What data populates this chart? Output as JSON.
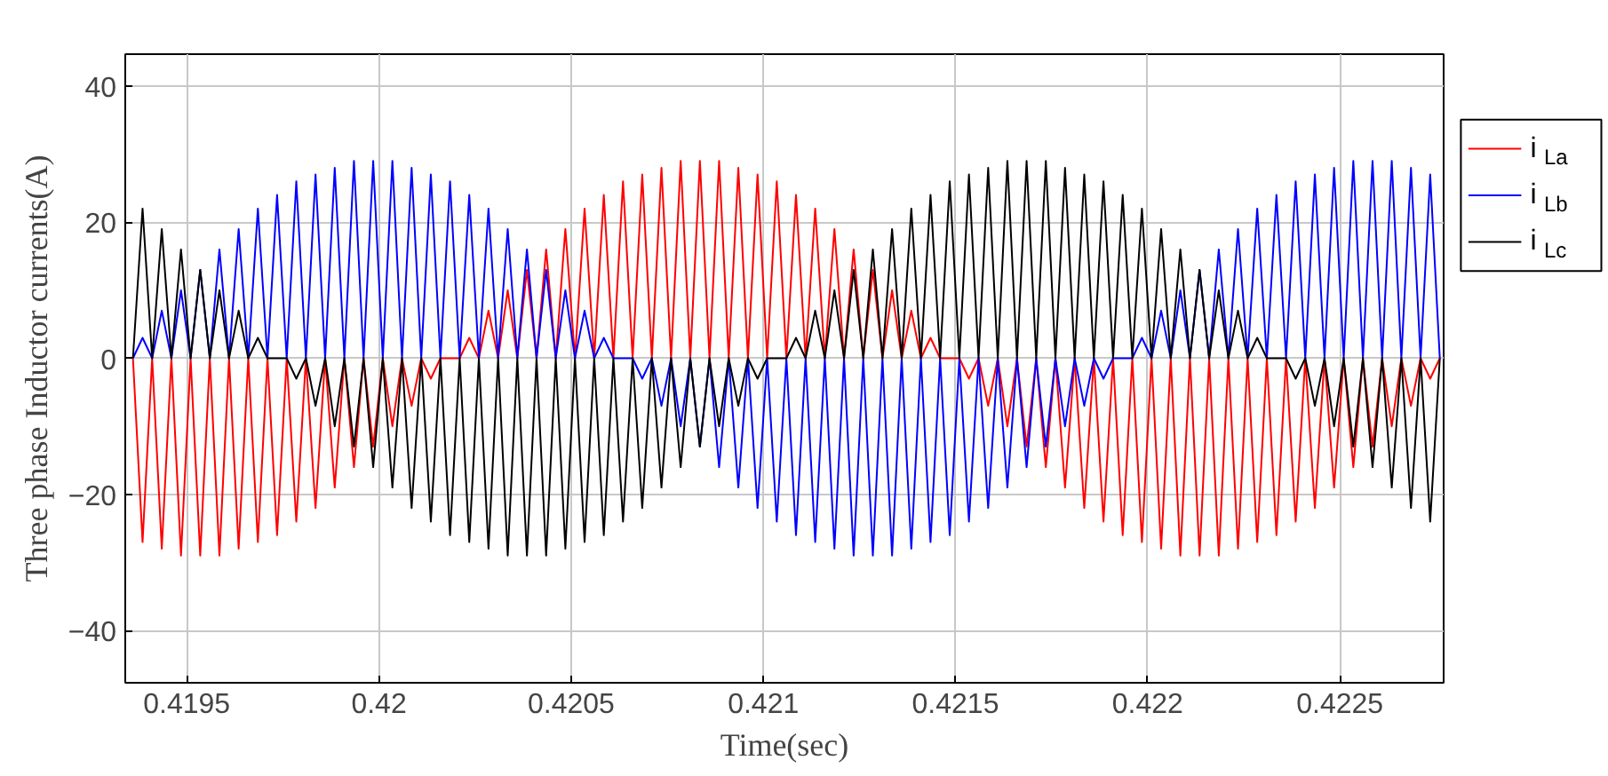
{
  "chart_data": {
    "type": "line",
    "xlabel": "Time(sec)",
    "ylabel": "Three phase Inductor currents(A)",
    "xlim": [
      0.41934,
      0.42277
    ],
    "ylim": [
      -47.7,
      44.7
    ],
    "xticks": [
      0.4195,
      0.42,
      0.4205,
      0.421,
      0.4215,
      0.422,
      0.4225
    ],
    "yticks": [
      -40,
      -20,
      0,
      20,
      40
    ],
    "grid": true,
    "legend": "right",
    "line_style": "solid",
    "x": [
      0.41936,
      0.419385,
      0.41941,
      0.419435,
      0.41946,
      0.419485,
      0.41951,
      0.419535,
      0.41956,
      0.419585,
      0.41961,
      0.419635,
      0.41966,
      0.419685,
      0.41971,
      0.419735,
      0.41976,
      0.419785,
      0.41981,
      0.419835,
      0.41986,
      0.419885,
      0.41991,
      0.419935,
      0.41996,
      0.419985,
      0.42001,
      0.420035,
      0.42006,
      0.420085,
      0.42011,
      0.420135,
      0.42016,
      0.420185,
      0.42021,
      0.420235,
      0.42026,
      0.420285,
      0.42031,
      0.420335,
      0.42036,
      0.420385,
      0.42041,
      0.420435,
      0.42046,
      0.420485,
      0.42051,
      0.420535,
      0.42056,
      0.420585,
      0.42061,
      0.420635,
      0.42066,
      0.420685,
      0.42071,
      0.420735,
      0.42076,
      0.420785,
      0.42081,
      0.420835,
      0.42086,
      0.420885,
      0.42091,
      0.420935,
      0.42096,
      0.420985,
      0.42101,
      0.421035,
      0.42106,
      0.421085,
      0.42111,
      0.421135,
      0.42116,
      0.421185,
      0.42121,
      0.421235,
      0.42126,
      0.421285,
      0.42131,
      0.421335,
      0.42136,
      0.421385,
      0.42141,
      0.421435,
      0.42146,
      0.421485,
      0.42151,
      0.421535,
      0.42156,
      0.421585,
      0.42161,
      0.421635,
      0.42166,
      0.421685,
      0.42171,
      0.421735,
      0.42176,
      0.421785,
      0.42181,
      0.421835,
      0.42186,
      0.421885,
      0.42191,
      0.421935,
      0.42196,
      0.421985,
      0.42201,
      0.422035,
      0.42206,
      0.422085,
      0.42211,
      0.422135,
      0.42216,
      0.422185,
      0.42221,
      0.422235,
      0.42226,
      0.422285,
      0.42231,
      0.422335,
      0.42236,
      0.422385,
      0.42241,
      0.422435,
      0.42246,
      0.422485,
      0.42251,
      0.422535,
      0.42256,
      0.422585,
      0.42261,
      0.422635,
      0.42266,
      0.422685,
      0.42271,
      0.422735,
      0.42276
    ],
    "series": [
      {
        "name": "i$_{La}$",
        "color": "#ff0000",
        "values": [
          0,
          -27,
          0,
          -28,
          0,
          -29,
          0,
          -29,
          0,
          -29,
          0,
          -28,
          0,
          -27,
          0,
          -26,
          0,
          -24,
          0,
          -22,
          0,
          -19,
          0,
          -16,
          0,
          -13,
          0,
          -10,
          0,
          -7,
          0,
          -3,
          0,
          0,
          0,
          3,
          0,
          7,
          0,
          10,
          0,
          13,
          0,
          16,
          0,
          19,
          0,
          22,
          0,
          24,
          0,
          26,
          0,
          27,
          0,
          28,
          0,
          29,
          0,
          29,
          0,
          29,
          0,
          28,
          0,
          27,
          0,
          26,
          0,
          24,
          0,
          22,
          0,
          19,
          0,
          16,
          0,
          13,
          0,
          10,
          0,
          7,
          0,
          3,
          0,
          0,
          0,
          -3,
          0,
          -7,
          0,
          -10,
          0,
          -13,
          0,
          -16,
          0,
          -19,
          0,
          -22,
          0,
          -24,
          0,
          -26,
          0,
          -27,
          0,
          -28,
          0,
          -29,
          0,
          -29,
          0,
          -29,
          0,
          -28,
          0,
          -27,
          0,
          -26,
          0,
          -24,
          0,
          -22,
          0,
          -19,
          0,
          -16,
          0,
          -13,
          0,
          -10,
          0,
          -7,
          0,
          -3,
          0
        ]
      },
      {
        "name": "i$_{Lb}$",
        "color": "#0000ff",
        "values": [
          0,
          3,
          0,
          7,
          0,
          10,
          0,
          13,
          0,
          16,
          0,
          19,
          0,
          22,
          0,
          24,
          0,
          26,
          0,
          27,
          0,
          28,
          0,
          29,
          0,
          29,
          0,
          29,
          0,
          28,
          0,
          27,
          0,
          26,
          0,
          24,
          0,
          22,
          0,
          19,
          0,
          16,
          0,
          13,
          0,
          10,
          0,
          7,
          0,
          3,
          0,
          0,
          0,
          -3,
          0,
          -7,
          0,
          -10,
          0,
          -13,
          0,
          -16,
          0,
          -19,
          0,
          -22,
          0,
          -24,
          0,
          -26,
          0,
          -27,
          0,
          -28,
          0,
          -29,
          0,
          -29,
          0,
          -29,
          0,
          -28,
          0,
          -27,
          0,
          -26,
          0,
          -24,
          0,
          -22,
          0,
          -19,
          0,
          -16,
          0,
          -13,
          0,
          -10,
          0,
          -7,
          0,
          -3,
          0,
          0,
          0,
          3,
          0,
          7,
          0,
          10,
          0,
          13,
          0,
          16,
          0,
          19,
          0,
          22,
          0,
          24,
          0,
          26,
          0,
          27,
          0,
          28,
          0,
          29,
          0,
          29,
          0,
          29,
          0,
          28,
          0,
          27,
          0
        ]
      },
      {
        "name": "i$_{Lc}$",
        "color": "#000000",
        "values": [
          0,
          22,
          0,
          19,
          0,
          16,
          0,
          13,
          0,
          10,
          0,
          7,
          0,
          3,
          0,
          0,
          0,
          -3,
          0,
          -7,
          0,
          -10,
          0,
          -13,
          0,
          -16,
          0,
          -19,
          0,
          -22,
          0,
          -24,
          0,
          -26,
          0,
          -27,
          0,
          -28,
          0,
          -29,
          0,
          -29,
          0,
          -29,
          0,
          -28,
          0,
          -27,
          0,
          -26,
          0,
          -24,
          0,
          -22,
          0,
          -19,
          0,
          -16,
          0,
          -13,
          0,
          -10,
          0,
          -7,
          0,
          -3,
          0,
          0,
          0,
          3,
          0,
          7,
          0,
          10,
          0,
          13,
          0,
          16,
          0,
          19,
          0,
          22,
          0,
          24,
          0,
          26,
          0,
          27,
          0,
          28,
          0,
          29,
          0,
          29,
          0,
          29,
          0,
          28,
          0,
          27,
          0,
          26,
          0,
          24,
          0,
          22,
          0,
          19,
          0,
          16,
          0,
          13,
          0,
          10,
          0,
          7,
          0,
          3,
          0,
          0,
          0,
          -3,
          0,
          -7,
          0,
          -10,
          0,
          -13,
          0,
          -16,
          0,
          -19,
          0,
          -22,
          0,
          -24,
          0
        ]
      }
    ]
  }
}
